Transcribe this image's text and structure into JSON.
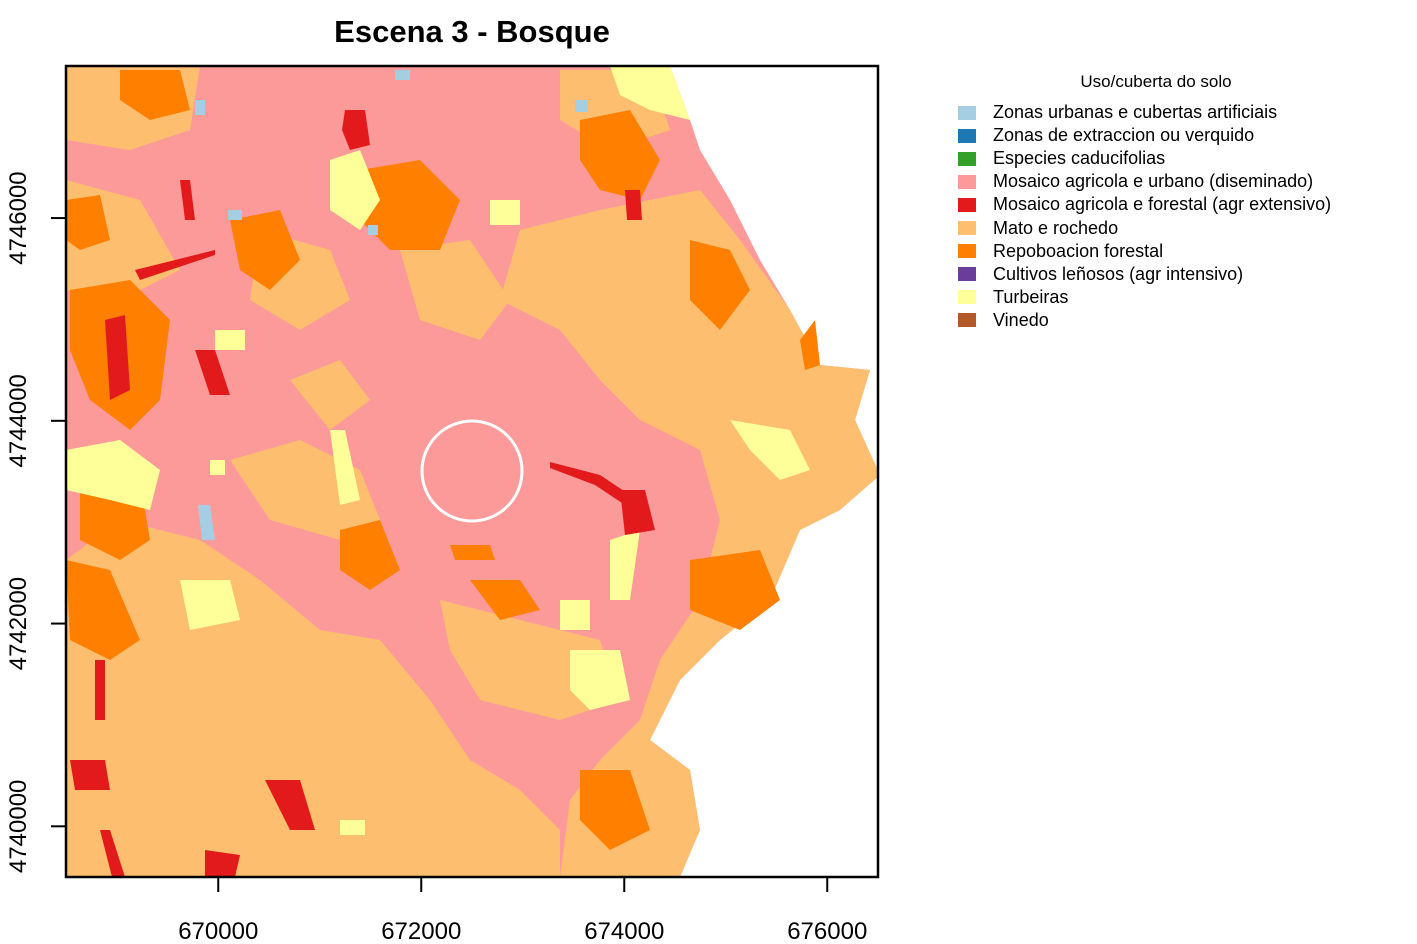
{
  "title": "Escena 3 - Bosque",
  "legend": {
    "title": "Uso/cuberta do solo",
    "items": [
      {
        "label": "Zonas urbanas e cubertas artificiais",
        "color": "#A6CEE3"
      },
      {
        "label": "Zonas de extraccion ou verquido",
        "color": "#1F78B4"
      },
      {
        "label": "Especies caducifolias",
        "color": "#33A02C"
      },
      {
        "label": "Mosaico agricola e urbano (diseminado)",
        "color": "#FB9A99"
      },
      {
        "label": "Mosaico agricola e forestal (agr extensivo)",
        "color": "#E31A1C"
      },
      {
        "label": "Mato e rochedo",
        "color": "#FDBF6F"
      },
      {
        "label": "Repoboacion forestal",
        "color": "#FF7F00"
      },
      {
        "label": "Cultivos leñosos (agr intensivo)",
        "color": "#6A3D9A"
      },
      {
        "label": "Turbeiras",
        "color": "#FFFF99"
      },
      {
        "label": "Vinedo",
        "color": "#B15928"
      }
    ]
  },
  "chart_data": {
    "type": "map",
    "title": "Escena 3 - Bosque",
    "x_ticks": [
      670000,
      672000,
      674000,
      676000
    ],
    "y_ticks": [
      4740000,
      4742000,
      4744000,
      4746000
    ],
    "x_tick_labels": [
      "670000",
      "672000",
      "674000",
      "676000"
    ],
    "y_tick_labels": [
      "4740000",
      "4742000",
      "4744000",
      "4746000"
    ],
    "xlim": [
      668500,
      676500
    ],
    "ylim": [
      4739500,
      4747500
    ],
    "marker": {
      "shape": "circle",
      "center": [
        672500,
        4743500
      ],
      "radius": 500,
      "color": "#FFFFFF"
    }
  }
}
